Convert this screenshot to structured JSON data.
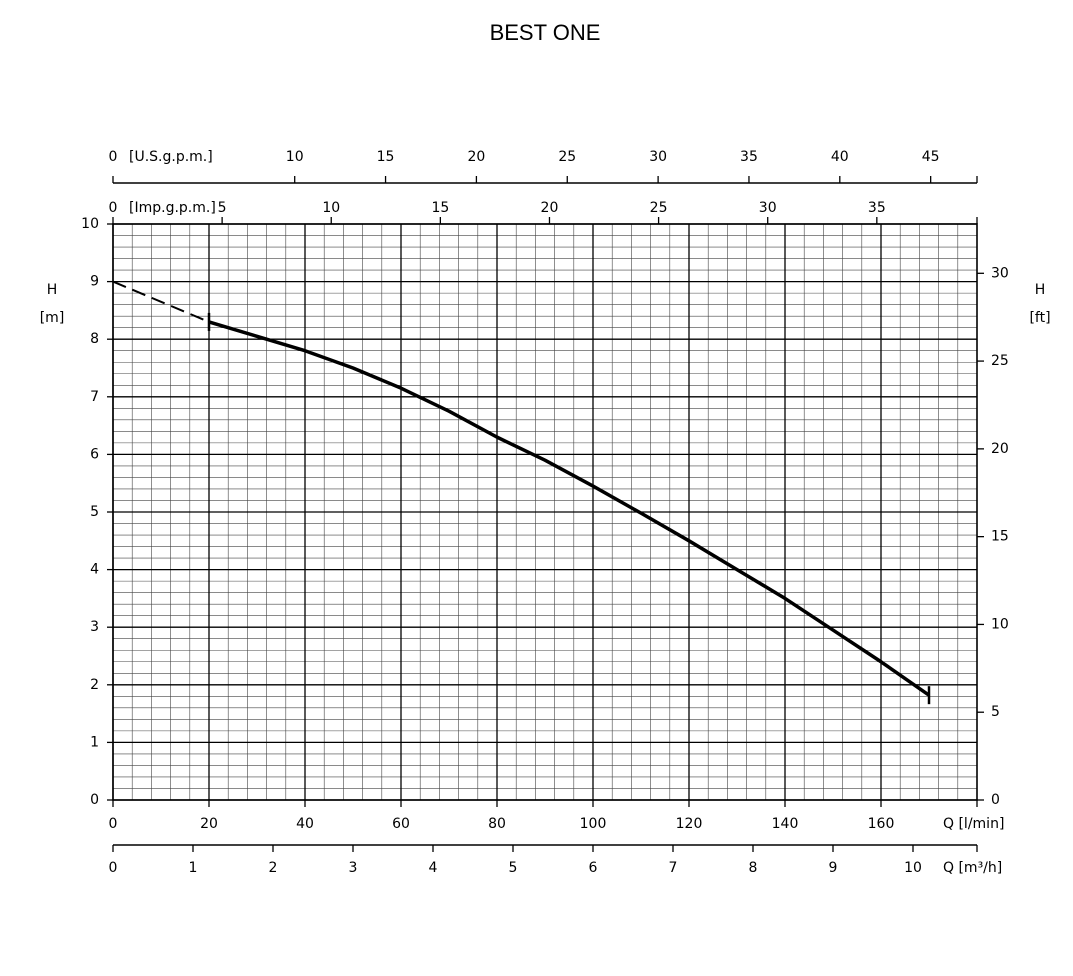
{
  "chart_data": {
    "type": "line",
    "title": "BEST ONE",
    "xlabel": "Q [l/min]",
    "xlim": [
      0,
      180
    ],
    "xticks": [
      0,
      20,
      40,
      60,
      80,
      100,
      120,
      140,
      160
    ],
    "ylabel": "H",
    "yunit": "[m]",
    "ylim": [
      0,
      10
    ],
    "yticks": [
      0,
      1,
      2,
      3,
      4,
      5,
      6,
      7,
      8,
      9,
      10
    ],
    "y2label": "H",
    "y2unit": "[ft]",
    "y2lim": [
      0,
      32.808
    ],
    "y2ticks": [
      0,
      5,
      10,
      15,
      20,
      25,
      30
    ],
    "extra_x_axes": [
      {
        "label": "[U.S.g.p.m.]",
        "lim": [
          0,
          47.55
        ],
        "ticks": [
          0,
          10,
          15,
          20,
          25,
          30,
          35,
          40,
          45
        ]
      },
      {
        "label": "[Imp.g.p.m.]",
        "lim": [
          0,
          39.59
        ],
        "ticks": [
          0,
          5,
          10,
          15,
          20,
          25,
          30,
          35
        ]
      },
      {
        "label": "Q [m³/h]",
        "lim": [
          0,
          10.8
        ],
        "ticks": [
          0,
          1,
          2,
          3,
          4,
          5,
          6,
          7,
          8,
          9,
          10
        ]
      }
    ],
    "grid": true,
    "minor_grid": {
      "x": 4,
      "y": 0.2
    },
    "series": [
      {
        "color": "#000000",
        "dash": true,
        "x": [
          0,
          20
        ],
        "values": [
          9,
          8.3
        ]
      },
      {
        "color": "#000000",
        "dash": false,
        "x": [
          20,
          30,
          40,
          50,
          60,
          70,
          80,
          90,
          100,
          110,
          120,
          130,
          140,
          150,
          160,
          170
        ],
        "values": [
          8.3,
          8.05,
          7.8,
          7.5,
          7.15,
          6.75,
          6.3,
          5.9,
          5.45,
          4.98,
          4.5,
          4.0,
          3.5,
          2.95,
          2.4,
          1.82
        ]
      }
    ]
  }
}
